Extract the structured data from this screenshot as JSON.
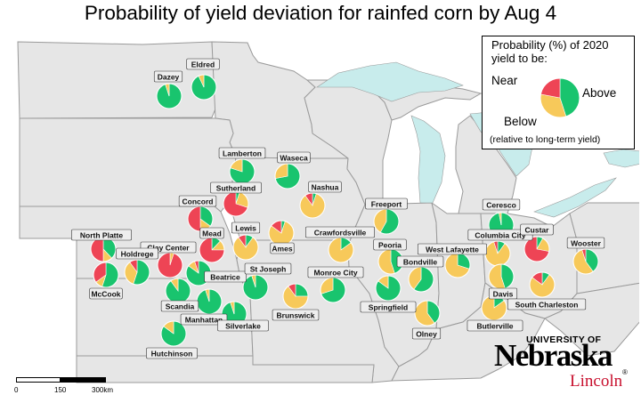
{
  "title": "Probability of yield deviation for rainfed corn by Aug 4",
  "colors": {
    "above": "#19c46e",
    "near": "#f7c95a",
    "below": "#ee4455",
    "state_fill": "#e6e6e6",
    "state_border": "#9a9a9a",
    "lakes": "#c8ecec",
    "label_bg": "#eeeeee"
  },
  "legend": {
    "heading": "Probability (%) of 2020 yield to be:",
    "near_label": "Near",
    "above_label": "Above",
    "below_label": "Below",
    "note": "(relative to long-term yield)",
    "example": {
      "above": 45,
      "near": 33,
      "below": 22
    }
  },
  "scalebar": {
    "ticks": [
      "0",
      "150",
      "300km"
    ]
  },
  "logo": {
    "university_text": "UNIVERSITY OF",
    "name": "Nebraska",
    "campus": "Lincoln",
    "mark": "®"
  },
  "sites": [
    {
      "name": "Eldred",
      "above": 93,
      "near": 7,
      "below": 0
    },
    {
      "name": "Dazey",
      "above": 95,
      "near": 5,
      "below": 0
    },
    {
      "name": "Lamberton",
      "above": 80,
      "near": 20,
      "below": 0
    },
    {
      "name": "Waseca",
      "above": 72,
      "near": 28,
      "below": 0
    },
    {
      "name": "Sutherland",
      "above": 5,
      "near": 25,
      "below": 70
    },
    {
      "name": "Nashua",
      "above": 5,
      "near": 85,
      "below": 10
    },
    {
      "name": "Concord",
      "above": 35,
      "near": 15,
      "below": 50
    },
    {
      "name": "Freeport",
      "above": 58,
      "near": 42,
      "below": 0
    },
    {
      "name": "Ceresco",
      "above": 97,
      "near": 3,
      "below": 0
    },
    {
      "name": "North Platte",
      "above": 38,
      "near": 12,
      "below": 50
    },
    {
      "name": "Mead",
      "above": 12,
      "near": 13,
      "below": 75
    },
    {
      "name": "Lewis",
      "above": 10,
      "near": 80,
      "below": 10
    },
    {
      "name": "Ames",
      "above": 5,
      "near": 80,
      "below": 15
    },
    {
      "name": "Crawfordsville",
      "above": 15,
      "near": 85,
      "below": 0
    },
    {
      "name": "Columbia City",
      "above": 10,
      "near": 85,
      "below": 5
    },
    {
      "name": "Custar",
      "above": 8,
      "near": 20,
      "below": 72
    },
    {
      "name": "Clay Center",
      "above": 0,
      "near": 5,
      "below": 95
    },
    {
      "name": "Holdrege",
      "above": 55,
      "near": 35,
      "below": 10
    },
    {
      "name": "McCook",
      "above": 55,
      "near": 10,
      "below": 35
    },
    {
      "name": "Beatrice",
      "above": 85,
      "near": 10,
      "below": 5
    },
    {
      "name": "St Joseph",
      "above": 95,
      "near": 5,
      "below": 0
    },
    {
      "name": "Peoria",
      "above": 45,
      "near": 55,
      "below": 0
    },
    {
      "name": "Bondville",
      "above": 60,
      "near": 40,
      "below": 0
    },
    {
      "name": "West Lafayette",
      "above": 30,
      "near": 70,
      "below": 0
    },
    {
      "name": "Wooster",
      "above": 40,
      "near": 55,
      "below": 5
    },
    {
      "name": "Scandia",
      "above": 90,
      "near": 10,
      "below": 0
    },
    {
      "name": "Manhattan",
      "above": 95,
      "near": 5,
      "below": 0
    },
    {
      "name": "Silverlake",
      "above": 95,
      "near": 5,
      "below": 0
    },
    {
      "name": "Monroe City",
      "above": 70,
      "near": 30,
      "below": 0
    },
    {
      "name": "Brunswick",
      "above": 25,
      "near": 65,
      "below": 10
    },
    {
      "name": "Springfield",
      "above": 85,
      "near": 15,
      "below": 0
    },
    {
      "name": "Davis",
      "above": 45,
      "near": 55,
      "below": 0
    },
    {
      "name": "South Charleston",
      "above": 10,
      "near": 75,
      "below": 15
    },
    {
      "name": "Butlerville",
      "above": 15,
      "near": 85,
      "below": 0
    },
    {
      "name": "Olney",
      "above": 40,
      "near": 60,
      "below": 0
    },
    {
      "name": "Hutchinson",
      "above": 85,
      "near": 15,
      "below": 0
    }
  ]
}
